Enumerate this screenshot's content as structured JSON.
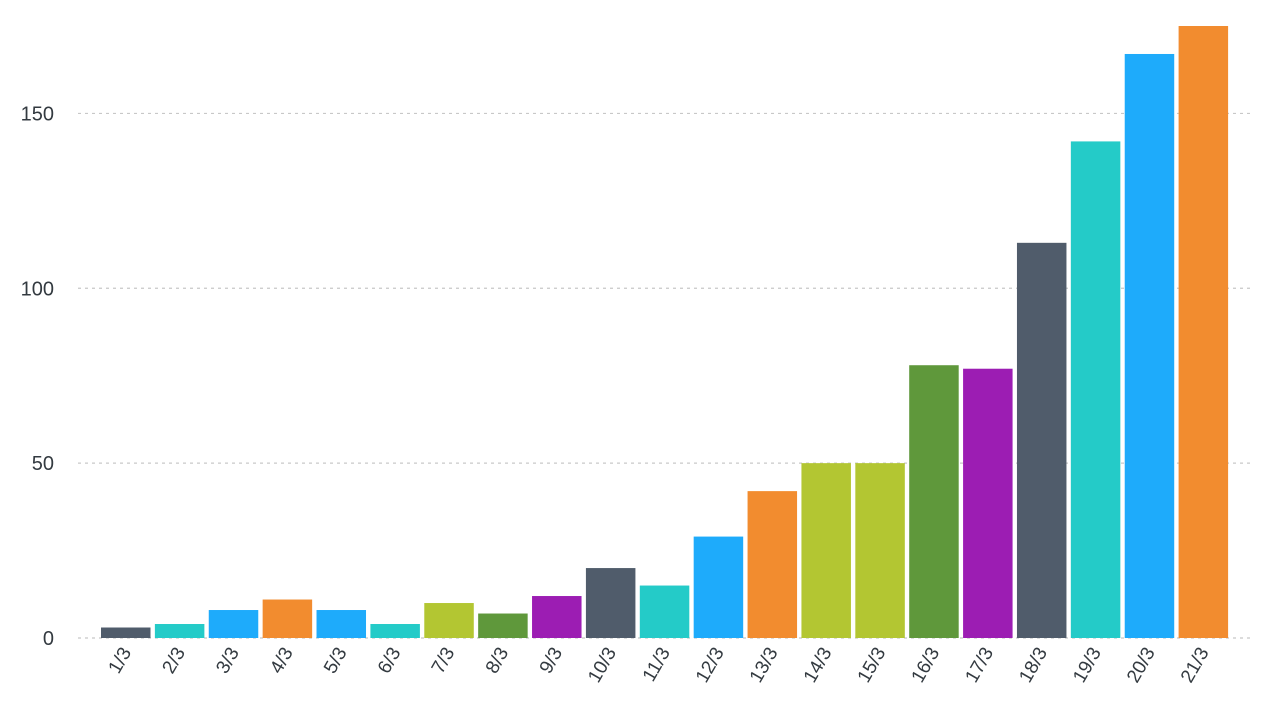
{
  "chart_data": {
    "type": "bar",
    "categories": [
      "1/3",
      "2/3",
      "3/3",
      "4/3",
      "5/3",
      "6/3",
      "7/3",
      "8/3",
      "9/3",
      "10/3",
      "11/3",
      "12/3",
      "13/3",
      "14/3",
      "15/3",
      "16/3",
      "17/3",
      "18/3",
      "19/3",
      "20/3",
      "21/3"
    ],
    "values": [
      3,
      4,
      8,
      11,
      8,
      4,
      10,
      7,
      12,
      20,
      15,
      29,
      42,
      50,
      50,
      78,
      77,
      113,
      142,
      167,
      175
    ],
    "colors": [
      "#505c6b",
      "#24cbc8",
      "#1eabfb",
      "#f28c2f",
      "#1eabfb",
      "#24cbc8",
      "#b3c632",
      "#5f983b",
      "#9c1db3",
      "#505c6b",
      "#24cbc8",
      "#1eabfb",
      "#f28c2f",
      "#b3c632",
      "#b3c632",
      "#5f983b",
      "#9c1db3",
      "#505c6b",
      "#24cbc8",
      "#1eabfb",
      "#f28c2f"
    ],
    "yticks": [
      0,
      50,
      100,
      150
    ],
    "ylim": [
      0,
      175
    ],
    "grid": true,
    "title": "",
    "xlabel": "",
    "ylabel": ""
  }
}
